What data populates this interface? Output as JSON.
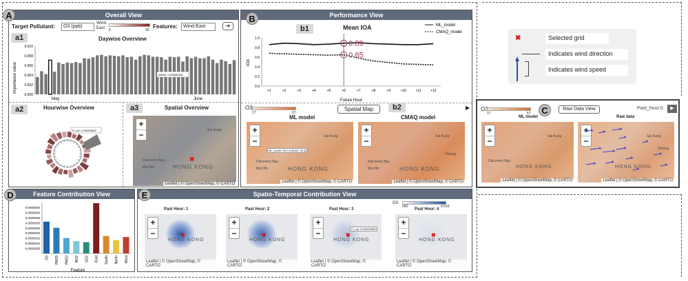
{
  "overall": {
    "badge": "A",
    "title": "Overall View",
    "target_label": "Target Pollutant:",
    "target_value": "O3 (ppb)",
    "wind_legend_label": "Wind-East",
    "wind_legend_min": "0",
    "wind_legend_max": "30",
    "features_label": "Features:",
    "features_value": "Wind-East",
    "a1": {
      "badge": "a1",
      "title": "Daywise Overview",
      "ylabel": "Importance value",
      "yticks": [
        "0.010",
        "0.008",
        "0.006",
        "0.004",
        "0.002",
        "0.000"
      ],
      "xticks": [
        "May",
        "June"
      ],
      "tooltip": "WinDir: 0.000592692",
      "values": [
        0.0036,
        0.0048,
        0.0042,
        0.0071,
        0.0047,
        0.0066,
        0.0063,
        0.0066,
        0.0065,
        0.0067,
        0.0065,
        0.0075,
        0.0074,
        0.0077,
        0.0081,
        0.0082,
        0.0079,
        0.0081,
        0.008,
        0.0079,
        0.0081,
        0.0077,
        0.0078,
        0.0072,
        0.0079,
        0.0082,
        0.0081,
        0.0078,
        0.0078,
        0.0077,
        0.0072,
        0.0078,
        0.0077,
        0.0078,
        0.0068,
        0.0079,
        0.0075,
        0.0078,
        0.0075,
        0.0075,
        0.0079,
        0.0072,
        0.0065,
        0.0072,
        0.0069,
        0.0063,
        0.0071
      ]
    },
    "a2": {
      "badge": "a2",
      "title": "Hourwise Overview",
      "tooltip": "FI_sol: 0.000093853"
    },
    "a3": {
      "badge": "a3",
      "title": "Spatial Overview"
    }
  },
  "map": {
    "places": [
      "Sai Kung",
      "Tseung",
      "Discovery Bay",
      "Mui Wo",
      "Kowloon"
    ],
    "hk": "HONG KONG",
    "attribution": "Leaflet | © OpenStreetMap, © CARTO",
    "zoom_in": "+",
    "zoom_out": "−"
  },
  "performance": {
    "badge": "B",
    "title": "Performance View",
    "b1": {
      "badge": "b1",
      "title": "Mean IOA",
      "legend": [
        "ML_model",
        "CMAQ_model"
      ],
      "ylabel": "IOA",
      "xlabel": "Future Hour",
      "yticks": [
        "1.0",
        "0.8",
        "0.6",
        "0.4",
        "0.2",
        "0.0"
      ],
      "xticks": [
        "+1",
        "+2",
        "+3",
        "+4",
        "+5",
        "+6",
        "+7",
        "+8",
        "+9",
        "+10",
        "+11",
        "+12"
      ],
      "ml_label": "0.89",
      "cmaq_label": "0.65"
    },
    "b2": {
      "badge": "b2",
      "o3_label": "O3",
      "scale_min": "17",
      "scale_max": "57",
      "spatial_button": "Spatial Map",
      "ml_title": "ML model",
      "cmaq_title": "CMAQ model",
      "tooltip": "ML_model: 35.0 (CMAQ: 39.6)"
    }
  },
  "chart_data": {
    "type": "line",
    "title": "Mean IOA",
    "xlabel": "Future Hour",
    "ylabel": "IOA",
    "x": [
      "+1",
      "+2",
      "+3",
      "+4",
      "+5",
      "+6",
      "+7",
      "+8",
      "+9",
      "+10",
      "+11",
      "+12"
    ],
    "ylim": [
      0,
      1
    ],
    "series": [
      {
        "name": "ML_model",
        "values": [
          0.86,
          0.89,
          0.88,
          0.86,
          0.87,
          0.89,
          0.9,
          0.88,
          0.87,
          0.86,
          0.86,
          0.88
        ]
      },
      {
        "name": "CMAQ_model",
        "values": [
          0.68,
          0.67,
          0.66,
          0.65,
          0.64,
          0.65,
          0.58,
          0.52,
          0.49,
          0.46,
          0.45,
          0.44
        ]
      }
    ]
  },
  "legend_box": {
    "selected_grid": "Selected grid",
    "wind_direction": "Indicates wind direction",
    "wind_speed": "Indicates wind speed"
  },
  "raw": {
    "badge": "C",
    "o3_label": "O3",
    "scale_min": "17",
    "scale_max": "57",
    "button": "Raw Data View",
    "past_hour": "Past_hour:0",
    "ml_title": "ML model",
    "raw_title": "Raw data"
  },
  "feature_contribution": {
    "badge": "D",
    "title": "Feature Contribution View",
    "xlabel": "Feature",
    "yticks": [
      "0.0000045",
      "0.0000040",
      "0.0000035",
      "0.0000030",
      "0.0000025",
      "0.0000020",
      "0.0000015",
      "0.0000010",
      "0.0000005"
    ],
    "bars": [
      {
        "name": "O3",
        "value": 3.1e-06,
        "color": "#1f5ea8"
      },
      {
        "name": "PM25",
        "value": 2.5e-06,
        "color": "#2a7cb8"
      },
      {
        "name": "PM10",
        "value": 1.5e-06,
        "color": "#4aa7cf"
      },
      {
        "name": "NO2",
        "value": 1.2e-06,
        "color": "#7cc7d7"
      },
      {
        "name": "SO2",
        "value": 1.1e-06,
        "color": "#2c8c7a"
      },
      {
        "name": "East",
        "value": 4.9e-06,
        "color": "#7b1e1e"
      },
      {
        "name": "South",
        "value": 1.7e-06,
        "color": "#d58a2e"
      },
      {
        "name": "North",
        "value": 1.3e-06,
        "color": "#e6c33a"
      },
      {
        "name": "West",
        "value": 1.6e-06,
        "color": "#c23b2e"
      }
    ]
  },
  "spatio": {
    "badge": "E",
    "title": "Spatio-Temporal Contribution View",
    "o3_label": "O3",
    "scale_min": "000",
    "scale_max": "0.010",
    "tooltip": "FI_val: 0.000093853",
    "hours": [
      "Past Hour: 1",
      "Past Hour: 2",
      "Past Hour: 3",
      "Past Hour: 4"
    ]
  }
}
